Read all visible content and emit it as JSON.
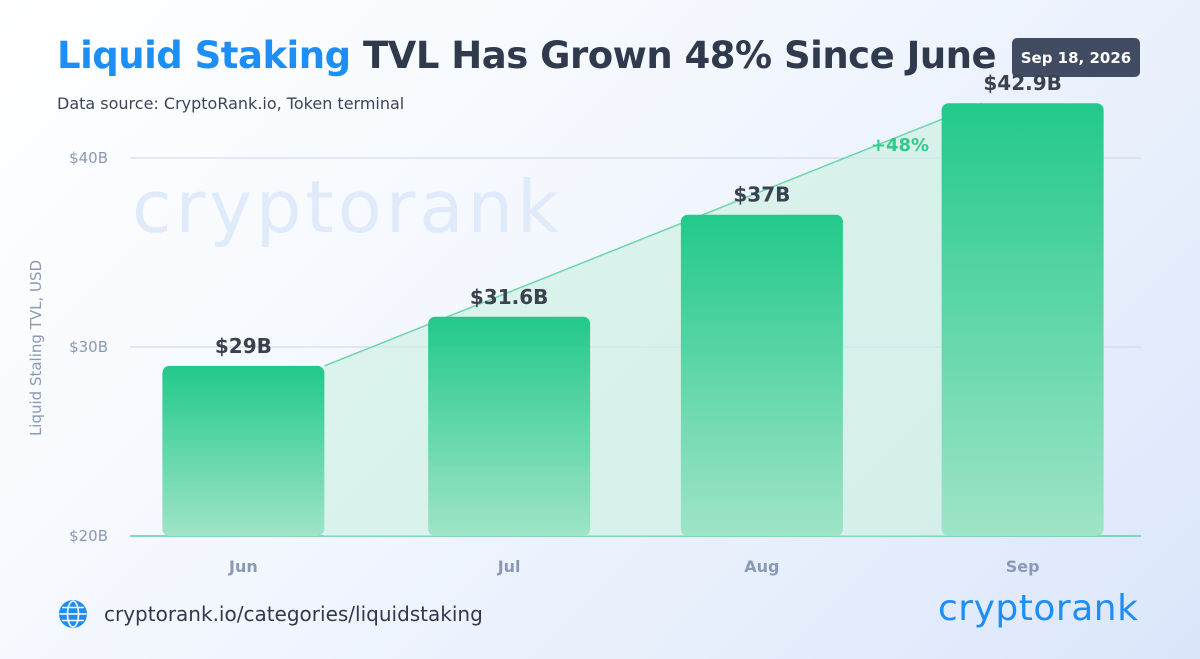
{
  "header": {
    "title_accent": "Liquid Staking",
    "title_rest": " TVL Has Grown 48% Since June",
    "subtitle": "Data source: CryptoRank.io, Token terminal",
    "date": "Sep 18, 2026"
  },
  "footer": {
    "url": "cryptorank.io/categories/liquidstaking",
    "brand": "cryptorank",
    "globe_icon": "globe-icon"
  },
  "watermark": "cryptorank",
  "colors": {
    "accent": "#1e8ef7",
    "bar_top": "#22c98a",
    "bar_bottom": "#9fe4c8",
    "growth": "#2fcb8c",
    "axis_text": "#8a99b4"
  },
  "chart_data": {
    "type": "bar",
    "categories": [
      "Jun",
      "Jul",
      "Aug",
      "Sep"
    ],
    "values": [
      29,
      31.6,
      37,
      42.9
    ],
    "data_labels": [
      "$29B",
      "$31.6B",
      "$37B",
      "$42.9B"
    ],
    "ylabel": "Liquid Staling TVL, USD",
    "yticks": [
      20,
      30,
      40
    ],
    "ytick_labels": [
      "$20B",
      "$30B",
      "$40B"
    ],
    "ylim": [
      20,
      42.9
    ],
    "grid": true,
    "growth_label": "+48%"
  }
}
